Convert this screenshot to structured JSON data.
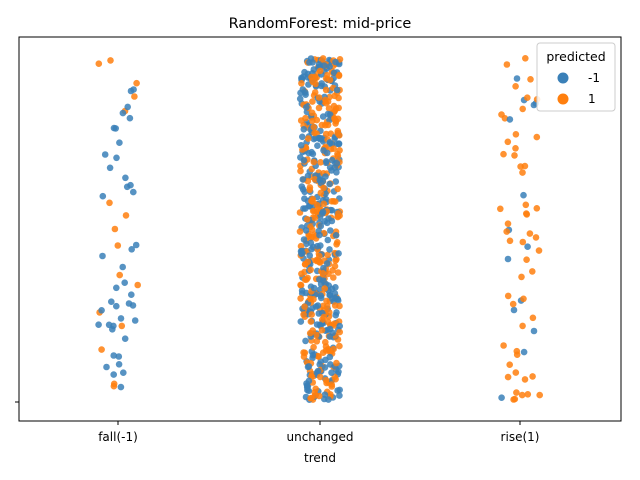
{
  "chart_data": {
    "type": "scatter",
    "subtype": "strip",
    "title": "RandomForest: mid-price",
    "xlabel": "trend",
    "ylabel": "",
    "categories": [
      "fall(-1)",
      "unchanged",
      "rise(1)"
    ],
    "ytick_labels": [
      ""
    ],
    "legend": {
      "title": "predicted",
      "placement": "top-right",
      "entries": [
        {
          "label": "-1",
          "color": "#3a80b8"
        },
        {
          "label": "1",
          "color": "#ff7f0e"
        }
      ]
    },
    "grid": false,
    "point_counts": {
      "fall(-1)": {
        "-1": 42,
        "1": 16
      },
      "unchanged": {
        "-1": 330,
        "1": 330
      },
      "rise(1)": {
        "-1": 14,
        "1": 52
      }
    }
  }
}
